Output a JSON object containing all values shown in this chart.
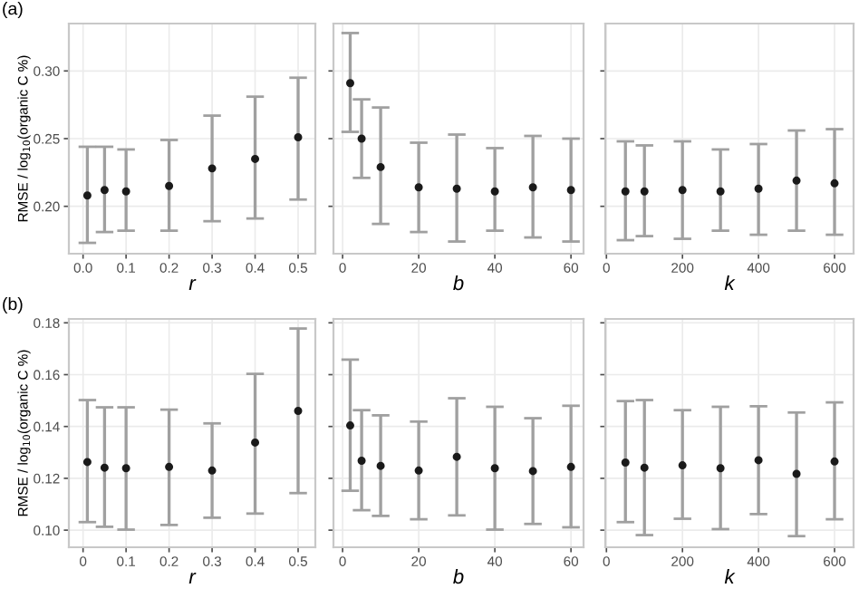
{
  "chart_data": [
    {
      "type": "scatter",
      "title": "(a)",
      "xlabel": "r",
      "ylabel": "RMSE / log$_{10}$(organic C %)",
      "grid": true,
      "marker": "circle",
      "x": [
        0.01,
        0.05,
        0.1,
        0.2,
        0.3,
        0.4,
        0.5
      ],
      "series": [
        {
          "color": "#1a1a1a",
          "values": [
            0.208,
            0.212,
            0.211,
            0.215,
            0.228,
            0.235,
            0.251
          ],
          "errors": [
            [
              0.173,
              0.244
            ],
            [
              0.181,
              0.244
            ],
            [
              0.182,
              0.242
            ],
            [
              0.182,
              0.249
            ],
            [
              0.189,
              0.267
            ],
            [
              0.191,
              0.281
            ],
            [
              0.205,
              0.295
            ]
          ]
        }
      ],
      "xlim": [
        -0.033,
        0.54
      ],
      "xticks": [
        {
          "value": 0,
          "label": "0.0"
        },
        0.1,
        0.2,
        0.3,
        0.4,
        0.5
      ],
      "ylim": [
        0.165,
        0.335
      ],
      "yticks": [
        {
          "value": 0.2,
          "label": "0.20"
        },
        0.25,
        {
          "value": 0.3,
          "label": "0.30"
        }
      ]
    },
    {
      "type": "scatter",
      "xlabel": "b",
      "grid": true,
      "marker": "circle",
      "tick_labels": "x",
      "x": [
        2,
        5,
        10,
        20,
        30,
        40,
        50,
        60
      ],
      "series": [
        {
          "color": "#1a1a1a",
          "values": [
            0.291,
            0.25,
            0.229,
            0.214,
            0.213,
            0.211,
            0.214,
            0.212
          ],
          "errors": [
            [
              0.255,
              0.328
            ],
            [
              0.221,
              0.279
            ],
            [
              0.187,
              0.273
            ],
            [
              0.181,
              0.247
            ],
            [
              0.174,
              0.253
            ],
            [
              0.182,
              0.243
            ],
            [
              0.177,
              0.252
            ],
            [
              0.174,
              0.25
            ]
          ]
        }
      ],
      "xlim": [
        -2.4,
        63.3
      ],
      "xticks": [
        0,
        20,
        40,
        60
      ],
      "ylim": [
        0.165,
        0.335
      ],
      "yticks": [
        0.2,
        0.25,
        0.3
      ]
    },
    {
      "type": "scatter",
      "xlabel": "k",
      "grid": true,
      "marker": "circle",
      "tick_labels": "x",
      "x": [
        50,
        100,
        200,
        300,
        400,
        500,
        600
      ],
      "series": [
        {
          "color": "#1a1a1a",
          "values": [
            0.211,
            0.211,
            0.212,
            0.211,
            0.213,
            0.219,
            0.217
          ],
          "errors": [
            [
              0.175,
              0.248
            ],
            [
              0.178,
              0.245
            ],
            [
              0.176,
              0.248
            ],
            [
              0.182,
              0.242
            ],
            [
              0.179,
              0.246
            ],
            [
              0.182,
              0.256
            ],
            [
              0.179,
              0.257
            ]
          ]
        }
      ],
      "xlim": [
        -3,
        650
      ],
      "xticks": [
        0,
        200,
        400,
        600
      ],
      "ylim": [
        0.165,
        0.335
      ],
      "yticks": [
        0.2,
        0.25,
        0.3
      ]
    },
    {
      "type": "scatter",
      "title": "(b)",
      "xlabel": "r",
      "ylabel": "RMSE / log$_{10}$(organic C %)",
      "grid": true,
      "marker": "circle",
      "x": [
        0.01,
        0.05,
        0.1,
        0.2,
        0.3,
        0.4,
        0.5
      ],
      "series": [
        {
          "color": "#1a1a1a",
          "values": [
            0.1263,
            0.1241,
            0.1239,
            0.1244,
            0.123,
            0.1338,
            0.146
          ],
          "errors": [
            [
              0.1031,
              0.1502
            ],
            [
              0.1013,
              0.1474
            ],
            [
              0.1002,
              0.1474
            ],
            [
              0.102,
              0.1465
            ],
            [
              0.1048,
              0.1412
            ],
            [
              0.1064,
              0.1603
            ],
            [
              0.1143,
              0.1778
            ]
          ]
        }
      ],
      "xlim": [
        -0.033,
        0.54
      ],
      "xticks": [
        0,
        0.1,
        0.2,
        0.3,
        0.4,
        0.5
      ],
      "ylim": [
        0.0934,
        0.1815
      ],
      "yticks": [
        {
          "value": 0.1,
          "label": "0.10"
        },
        0.12,
        0.14,
        0.16,
        0.18
      ]
    },
    {
      "type": "scatter",
      "xlabel": "b",
      "grid": true,
      "marker": "circle",
      "tick_labels": "x",
      "x": [
        2,
        5,
        10,
        20,
        30,
        40,
        50,
        60
      ],
      "series": [
        {
          "color": "#1a1a1a",
          "values": [
            0.1404,
            0.1268,
            0.1248,
            0.123,
            0.1283,
            0.1239,
            0.1228,
            0.1244
          ],
          "errors": [
            [
              0.1152,
              0.1658
            ],
            [
              0.1077,
              0.1463
            ],
            [
              0.1055,
              0.1443
            ],
            [
              0.1042,
              0.1419
            ],
            [
              0.1057,
              0.1509
            ],
            [
              0.1002,
              0.1476
            ],
            [
              0.1024,
              0.1432
            ],
            [
              0.1011,
              0.148
            ]
          ]
        }
      ],
      "xlim": [
        -2.4,
        63.3
      ],
      "xticks": [
        0,
        20,
        40,
        60
      ],
      "ylim": [
        0.0934,
        0.1815
      ],
      "yticks": [
        0.1,
        0.12,
        0.14,
        0.16,
        0.18
      ]
    },
    {
      "type": "scatter",
      "xlabel": "k",
      "grid": true,
      "marker": "circle",
      "tick_labels": "x",
      "x": [
        50,
        100,
        200,
        300,
        400,
        500,
        600
      ],
      "series": [
        {
          "color": "#1a1a1a",
          "values": [
            0.1261,
            0.1241,
            0.125,
            0.1239,
            0.127,
            0.1217,
            0.1265
          ],
          "errors": [
            [
              0.1031,
              0.1498
            ],
            [
              0.0981,
              0.1502
            ],
            [
              0.1044,
              0.1463
            ],
            [
              0.1004,
              0.1476
            ],
            [
              0.1062,
              0.1478
            ],
            [
              0.0977,
              0.1454
            ],
            [
              0.1042,
              0.1493
            ]
          ]
        }
      ],
      "xlim": [
        -3,
        650
      ],
      "xticks": [
        0,
        200,
        400,
        600
      ],
      "ylim": [
        0.0934,
        0.1815
      ],
      "yticks": [
        0.1,
        0.12,
        0.14,
        0.16,
        0.18
      ]
    }
  ]
}
